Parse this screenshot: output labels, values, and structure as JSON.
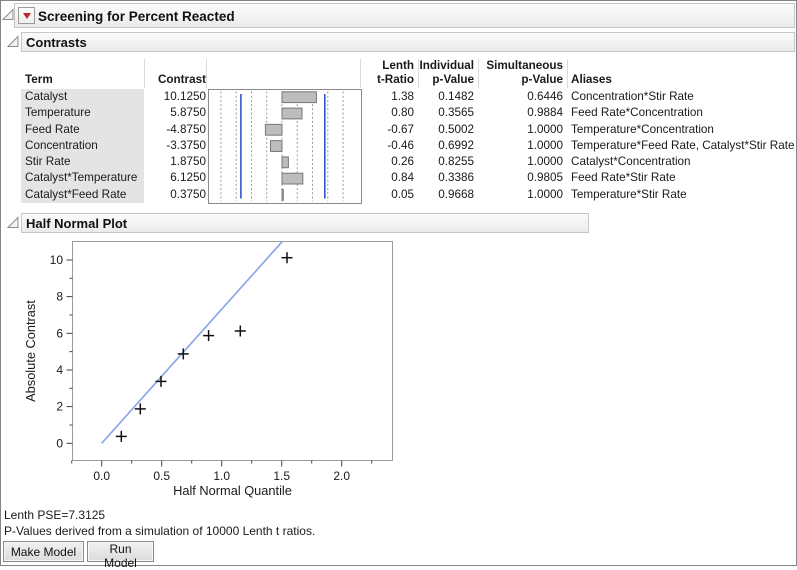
{
  "window": {
    "title": "Screening for Percent Reacted"
  },
  "contrasts": {
    "title": "Contrasts",
    "headers": {
      "term": "Term",
      "contrast": "Contrast",
      "lenth": "Lenth\nt-Ratio",
      "individual": "Individual\np-Value",
      "simultaneous": "Simultaneous\np-Value",
      "aliases": "Aliases"
    },
    "rows": [
      {
        "term": "Catalyst",
        "contrast": "10.1250",
        "value": 10.125,
        "t_ratio": "1.38",
        "individual_p": "0.1482",
        "simultaneous_p": "0.6446",
        "aliases": "Concentration*Stir Rate"
      },
      {
        "term": "Temperature",
        "contrast": "5.8750",
        "value": 5.875,
        "t_ratio": "0.80",
        "individual_p": "0.3565",
        "simultaneous_p": "0.9884",
        "aliases": "Feed Rate*Concentration"
      },
      {
        "term": "Feed Rate",
        "contrast": "-4.8750",
        "value": -4.875,
        "t_ratio": "-0.67",
        "individual_p": "0.5002",
        "simultaneous_p": "1.0000",
        "aliases": "Temperature*Concentration"
      },
      {
        "term": "Concentration",
        "contrast": "-3.3750",
        "value": -3.375,
        "t_ratio": "-0.46",
        "individual_p": "0.6992",
        "simultaneous_p": "1.0000",
        "aliases": "Temperature*Feed Rate, Catalyst*Stir Rate"
      },
      {
        "term": "Stir Rate",
        "contrast": "1.8750",
        "value": 1.875,
        "t_ratio": "0.26",
        "individual_p": "0.8255",
        "simultaneous_p": "1.0000",
        "aliases": "Catalyst*Concentration"
      },
      {
        "term": "Catalyst*Temperature",
        "contrast": "6.1250",
        "value": 6.125,
        "t_ratio": "0.84",
        "individual_p": "0.3386",
        "simultaneous_p": "0.9805",
        "aliases": "Feed Rate*Stir Rate"
      },
      {
        "term": "Catalyst*Feed Rate",
        "contrast": "0.3750",
        "value": 0.375,
        "t_ratio": "0.05",
        "individual_p": "0.9668",
        "simultaneous_p": "1.0000",
        "aliases": "Temperature*Stir Rate"
      }
    ]
  },
  "half_normal": {
    "title": "Half Normal Plot"
  },
  "footer": {
    "lenth_pse": "Lenth PSE=7.3125",
    "note": "P-Values derived from a simulation of 10000 Lenth t ratios.",
    "buttons": [
      {
        "label": "Make Model"
      },
      {
        "label": "Run Model"
      }
    ]
  },
  "colors": {
    "limit_line_blue": "#3355cc",
    "fit_line_blue": "#8aa7e9",
    "bar_fill": "#bdbdbd",
    "bar_border": "#767676",
    "red_triangle": "#c0272d",
    "term_cell_bg": "#e4e4e4"
  },
  "chart_data": [
    {
      "type": "bar",
      "name": "contrast-bars",
      "orientation": "horizontal",
      "categories": [
        "Catalyst",
        "Temperature",
        "Feed Rate",
        "Concentration",
        "Stir Rate",
        "Catalyst*Temperature",
        "Catalyst*Feed Rate"
      ],
      "values": [
        10.125,
        5.875,
        -4.875,
        -3.375,
        1.875,
        6.125,
        0.375
      ],
      "xlim": [
        -21.8,
        23.2
      ],
      "reference_lines_x": [
        -12.1,
        12.6
      ],
      "gridline_spacing": 4.49,
      "grid": "dashed-vertical"
    },
    {
      "type": "scatter",
      "name": "half-normal-plot",
      "x": [
        0.163,
        0.322,
        0.494,
        0.68,
        0.891,
        1.155,
        1.544
      ],
      "y": [
        0.375,
        1.875,
        3.375,
        4.875,
        5.875,
        6.125,
        10.125
      ],
      "marker": "plus",
      "fit_line": {
        "slope": 7.3125,
        "intercept": 0
      },
      "xlabel": "Half Normal Quantile",
      "ylabel": "Absolute Contrast",
      "xticks": [
        0.0,
        0.5,
        1.0,
        1.5,
        2.0
      ],
      "yticks": [
        0,
        2,
        4,
        6,
        8,
        10
      ],
      "xlim": [
        -0.25,
        2.42
      ],
      "ylim": [
        -0.94,
        11.0
      ],
      "grid": "off",
      "legend": "none"
    }
  ]
}
